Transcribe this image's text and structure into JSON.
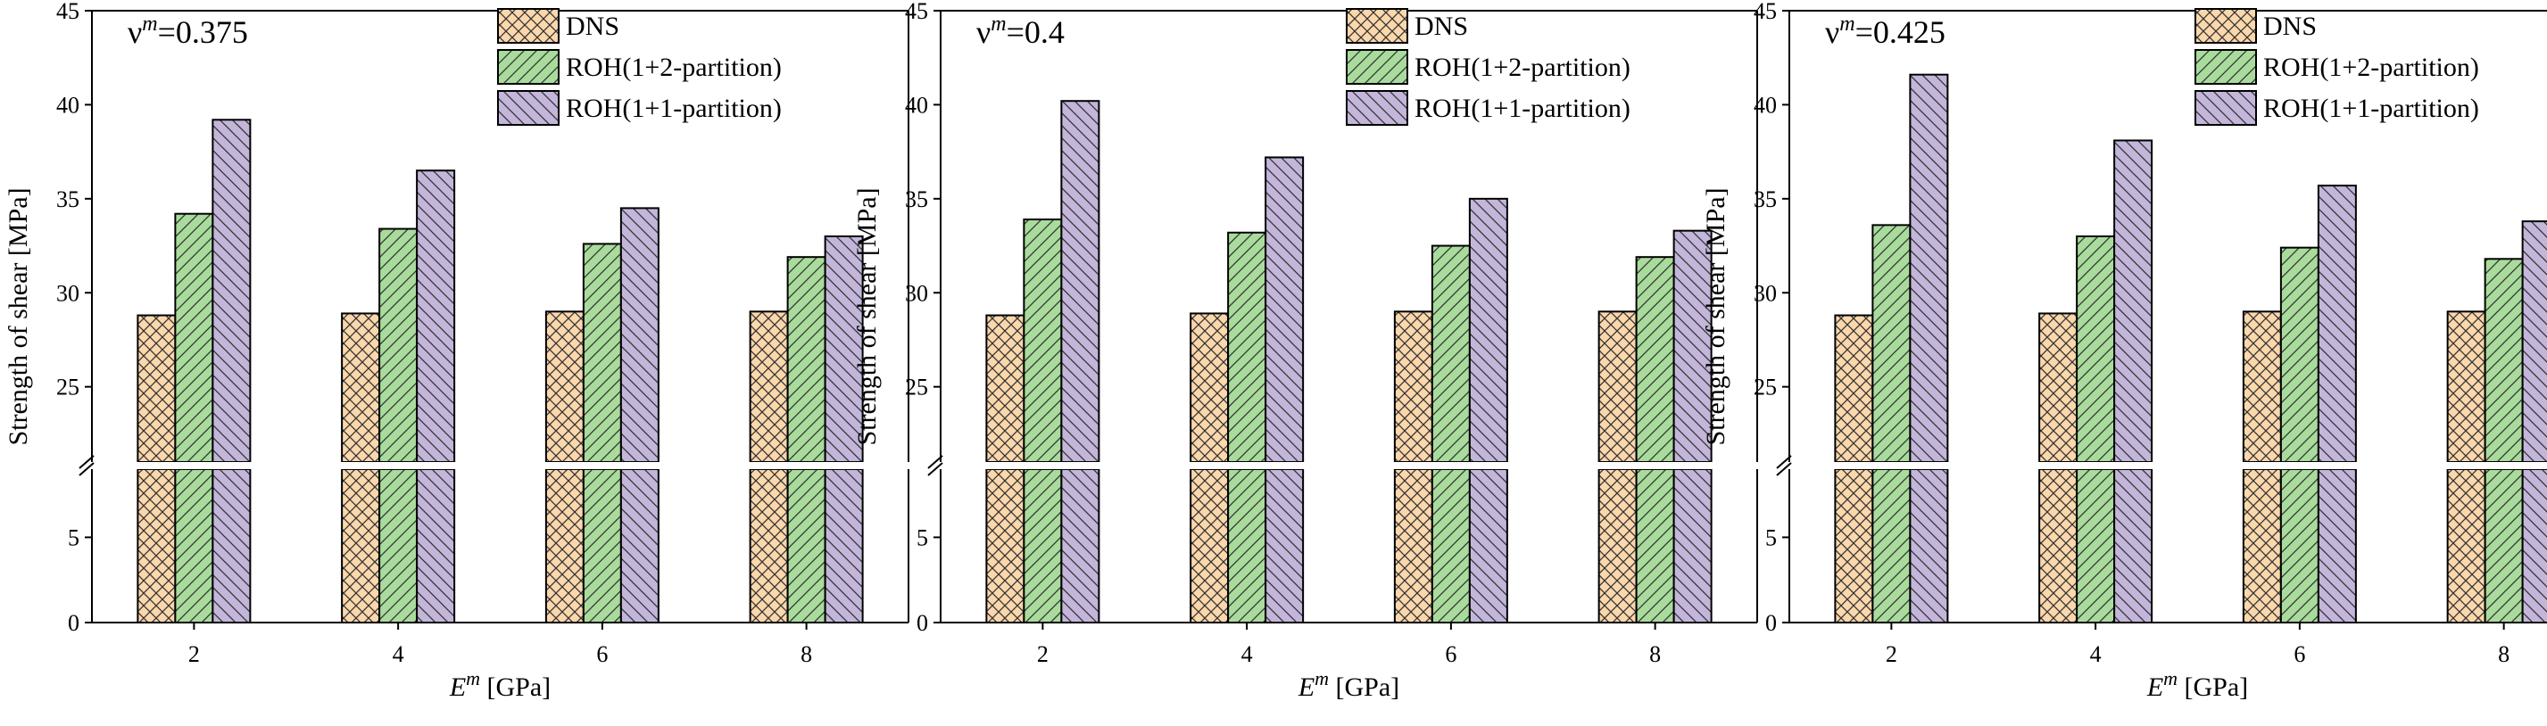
{
  "figure": {
    "ylabel": "Strength of shear [MPa]",
    "xlabel_symbol": "E",
    "xlabel_sup": "m",
    "xlabel_unit": " [GPa]",
    "nu_symbol": "ν",
    "nu_sup": "m"
  },
  "colors": {
    "DNS": "#fbd7ac",
    "ROH(1+2-partition)": "#a9dc9c",
    "ROH(1+1-partition)": "#c3b6da",
    "stroke": "#000000"
  },
  "chart_data": [
    {
      "type": "bar",
      "title": "0.375",
      "categories": [
        "2",
        "4",
        "6",
        "8"
      ],
      "series": [
        {
          "name": "DNS",
          "values": [
            28.8,
            28.9,
            29.0,
            29.0
          ]
        },
        {
          "name": "ROH(1+2-partition)",
          "values": [
            34.2,
            33.4,
            32.6,
            31.9
          ]
        },
        {
          "name": "ROH(1+1-partition)",
          "values": [
            39.2,
            36.5,
            34.5,
            33.0
          ]
        }
      ],
      "xlabel": "Em [GPa]",
      "ylabel": "Strength of shear [MPa]",
      "ylim_lower": [
        0,
        9
      ],
      "ylim_upper": [
        21,
        45
      ],
      "yticks": [
        0,
        5,
        25,
        30,
        35,
        40,
        45
      ],
      "legend": "top-right",
      "grid": false
    },
    {
      "type": "bar",
      "title": "0.4",
      "categories": [
        "2",
        "4",
        "6",
        "8"
      ],
      "series": [
        {
          "name": "DNS",
          "values": [
            28.8,
            28.9,
            29.0,
            29.0
          ]
        },
        {
          "name": "ROH(1+2-partition)",
          "values": [
            33.9,
            33.2,
            32.5,
            31.9
          ]
        },
        {
          "name": "ROH(1+1-partition)",
          "values": [
            40.2,
            37.2,
            35.0,
            33.3
          ]
        }
      ],
      "xlabel": "Em [GPa]",
      "ylabel": "Strength of shear [MPa]",
      "ylim_lower": [
        0,
        9
      ],
      "ylim_upper": [
        21,
        45
      ],
      "yticks": [
        0,
        5,
        25,
        30,
        35,
        40,
        45
      ],
      "legend": "top-right",
      "grid": false
    },
    {
      "type": "bar",
      "title": "0.425",
      "categories": [
        "2",
        "4",
        "6",
        "8"
      ],
      "series": [
        {
          "name": "DNS",
          "values": [
            28.8,
            28.9,
            29.0,
            29.0
          ]
        },
        {
          "name": "ROH(1+2-partition)",
          "values": [
            33.6,
            33.0,
            32.4,
            31.8
          ]
        },
        {
          "name": "ROH(1+1-partition)",
          "values": [
            41.6,
            38.1,
            35.7,
            33.8
          ]
        }
      ],
      "xlabel": "Em [GPa]",
      "ylabel": "Strength of shear [MPa]",
      "ylim_lower": [
        0,
        9
      ],
      "ylim_upper": [
        21,
        45
      ],
      "yticks": [
        0,
        5,
        25,
        30,
        35,
        40,
        45
      ],
      "legend": "top-right",
      "grid": false
    }
  ]
}
